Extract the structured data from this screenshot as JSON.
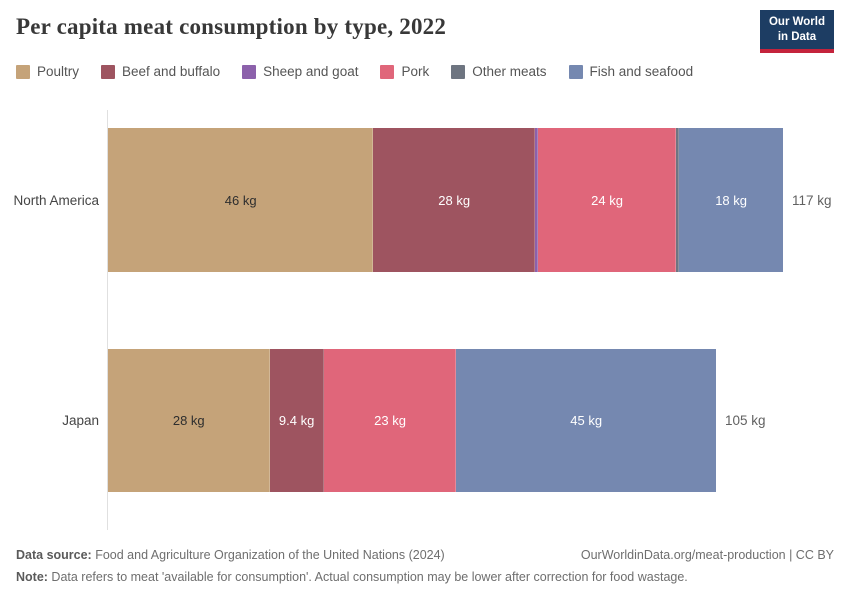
{
  "header": {
    "title": "Per capita meat consumption by type, 2022",
    "logo": {
      "line1": "Our World",
      "line2": "in Data"
    }
  },
  "colors": {
    "navy": "#1d3d63",
    "logo_red": "#c4233c",
    "axis_gray": "#e0e0e0",
    "dark_text": "#2e2e2e",
    "light_text": "#ffffff"
  },
  "legend": [
    {
      "label": "Poultry",
      "color": "#c5a379"
    },
    {
      "label": "Beef and buffalo",
      "color": "#9e5460"
    },
    {
      "label": "Sheep and goat",
      "color": "#8c61ab"
    },
    {
      "label": "Pork",
      "color": "#e0667a"
    },
    {
      "label": "Other meats",
      "color": "#6e7581"
    },
    {
      "label": "Fish and seafood",
      "color": "#7588b0"
    }
  ],
  "chart_data": {
    "type": "bar",
    "orientation": "horizontal-stacked",
    "unit": "kg",
    "xlim": [
      0,
      117
    ],
    "grid": false,
    "legend_position": "top",
    "categories": [
      "Poultry",
      "Beef and buffalo",
      "Sheep and goat",
      "Pork",
      "Other meats",
      "Fish and seafood"
    ],
    "rows": [
      {
        "name": "North America",
        "total": 117,
        "total_label": "117 kg",
        "segments": [
          {
            "category": "Poultry",
            "value": 46,
            "label": "46 kg",
            "text": "dark"
          },
          {
            "category": "Beef and buffalo",
            "value": 28,
            "label": "28 kg",
            "text": "light"
          },
          {
            "category": "Sheep and goat",
            "value": 0.5,
            "label": "",
            "text": "light"
          },
          {
            "category": "Pork",
            "value": 24,
            "label": "24 kg",
            "text": "light"
          },
          {
            "category": "Other meats",
            "value": 0.5,
            "label": "",
            "text": "light"
          },
          {
            "category": "Fish and seafood",
            "value": 18,
            "label": "18 kg",
            "text": "light"
          }
        ]
      },
      {
        "name": "Japan",
        "total": 105,
        "total_label": "105 kg",
        "segments": [
          {
            "category": "Poultry",
            "value": 28,
            "label": "28 kg",
            "text": "dark"
          },
          {
            "category": "Beef and buffalo",
            "value": 9.4,
            "label": "9.4 kg",
            "text": "light"
          },
          {
            "category": "Pork",
            "value": 23,
            "label": "23 kg",
            "text": "light"
          },
          {
            "category": "Fish and seafood",
            "value": 45,
            "label": "45 kg",
            "text": "light"
          }
        ]
      }
    ]
  },
  "footer": {
    "source_label": "Data source:",
    "source_text": " Food and Agriculture Organization of the United Nations (2024)",
    "credit": "OurWorldinData.org/meat-production | CC BY",
    "note_label": "Note:",
    "note_text": " Data refers to meat 'available for consumption'. Actual consumption may be lower after correction for food wastage."
  }
}
